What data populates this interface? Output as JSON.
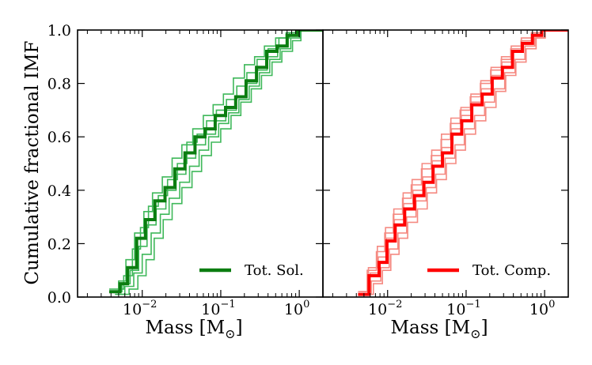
{
  "ylabel": "Cumulative fractional IMF",
  "colors": {
    "green_main": "#0b7d10",
    "green_light": "#3fb85a",
    "red_main": "#ff0000",
    "red_light": "#f58a82",
    "axis": "#000000"
  },
  "chart_data": [
    {
      "type": "line",
      "panel": "left",
      "xscale": "log",
      "xlim": [
        0.0015,
        2.0
      ],
      "ylim": [
        0.0,
        1.0
      ],
      "xlabel": "Mass [M☉]",
      "yticks": [
        "0.0",
        "0.2",
        "0.4",
        "0.6",
        "0.8",
        "1.0"
      ],
      "yticks_values": [
        0.0,
        0.2,
        0.4,
        0.6,
        0.8,
        1.0
      ],
      "xticks": [
        {
          "value": 0.01,
          "base": "10",
          "exp": "−2"
        },
        {
          "value": 0.1,
          "base": "10",
          "exp": "−1"
        },
        {
          "value": 1.0,
          "base": "10",
          "exp": "0"
        }
      ],
      "legend": {
        "label": "Tot. Sol.",
        "position": "lower-right"
      },
      "series": [
        {
          "role": "total",
          "color": "#0b7d10",
          "x": [
            0.0038,
            0.0052,
            0.0065,
            0.0085,
            0.011,
            0.0145,
            0.0195,
            0.026,
            0.035,
            0.047,
            0.063,
            0.085,
            0.115,
            0.155,
            0.21,
            0.285,
            0.385,
            0.52,
            0.7,
            0.95
          ],
          "y": [
            0.02,
            0.05,
            0.11,
            0.22,
            0.29,
            0.36,
            0.41,
            0.48,
            0.54,
            0.6,
            0.63,
            0.68,
            0.71,
            0.75,
            0.81,
            0.86,
            0.92,
            0.94,
            0.98,
            1.0
          ]
        },
        {
          "role": "sample",
          "color": "#3fb85a",
          "x": [
            0.0038,
            0.0058,
            0.0075,
            0.0095,
            0.012,
            0.016,
            0.021,
            0.028,
            0.037,
            0.05,
            0.066,
            0.088,
            0.118,
            0.16,
            0.215,
            0.29,
            0.4,
            0.55,
            0.75,
            1.0
          ],
          "y": [
            0.03,
            0.08,
            0.18,
            0.26,
            0.34,
            0.38,
            0.44,
            0.5,
            0.58,
            0.61,
            0.66,
            0.7,
            0.74,
            0.79,
            0.84,
            0.89,
            0.93,
            0.97,
            0.99,
            1.0
          ]
        },
        {
          "role": "sample",
          "color": "#3fb85a",
          "x": [
            0.004,
            0.005,
            0.0062,
            0.008,
            0.0105,
            0.0135,
            0.018,
            0.024,
            0.032,
            0.044,
            0.06,
            0.08,
            0.108,
            0.145,
            0.2,
            0.27,
            0.36,
            0.5,
            0.68,
            0.9
          ],
          "y": [
            0.02,
            0.06,
            0.14,
            0.24,
            0.32,
            0.39,
            0.45,
            0.52,
            0.57,
            0.63,
            0.68,
            0.72,
            0.76,
            0.82,
            0.87,
            0.9,
            0.94,
            0.97,
            0.99,
            1.0
          ]
        },
        {
          "role": "sample",
          "color": "#3fb85a",
          "x": [
            0.0042,
            0.0055,
            0.007,
            0.009,
            0.0115,
            0.015,
            0.02,
            0.027,
            0.036,
            0.048,
            0.064,
            0.086,
            0.116,
            0.158,
            0.213,
            0.288,
            0.39,
            0.53,
            0.72,
            0.98
          ],
          "y": [
            0.02,
            0.05,
            0.1,
            0.19,
            0.27,
            0.33,
            0.4,
            0.46,
            0.52,
            0.57,
            0.61,
            0.66,
            0.7,
            0.75,
            0.8,
            0.85,
            0.9,
            0.94,
            0.98,
            1.0
          ]
        },
        {
          "role": "sample",
          "color": "#3fb85a",
          "x": [
            0.0045,
            0.006,
            0.0078,
            0.01,
            0.013,
            0.017,
            0.022,
            0.03,
            0.04,
            0.053,
            0.07,
            0.094,
            0.126,
            0.17,
            0.23,
            0.31,
            0.42,
            0.57,
            0.78,
            1.02
          ],
          "y": [
            0.01,
            0.04,
            0.09,
            0.16,
            0.24,
            0.31,
            0.37,
            0.43,
            0.49,
            0.55,
            0.6,
            0.65,
            0.69,
            0.74,
            0.79,
            0.84,
            0.89,
            0.93,
            0.97,
            1.0
          ]
        },
        {
          "role": "sample",
          "color": "#3fb85a",
          "x": [
            0.005,
            0.0068,
            0.0088,
            0.0112,
            0.0142,
            0.0185,
            0.024,
            0.032,
            0.043,
            0.057,
            0.076,
            0.1,
            0.135,
            0.18,
            0.245,
            0.33,
            0.45,
            0.6,
            0.82,
            1.05
          ],
          "y": [
            0.01,
            0.03,
            0.08,
            0.14,
            0.22,
            0.29,
            0.35,
            0.41,
            0.47,
            0.53,
            0.58,
            0.63,
            0.68,
            0.73,
            0.78,
            0.83,
            0.88,
            0.92,
            0.96,
            1.0
          ]
        }
      ]
    },
    {
      "type": "line",
      "panel": "right",
      "xscale": "log",
      "xlim": [
        0.0015,
        2.0
      ],
      "ylim": [
        0.0,
        1.0
      ],
      "xlabel": "Mass [M☉]",
      "xticks": [
        {
          "value": 0.01,
          "base": "10",
          "exp": "−2"
        },
        {
          "value": 0.1,
          "base": "10",
          "exp": "−1"
        },
        {
          "value": 1.0,
          "base": "10",
          "exp": "0"
        }
      ],
      "legend": {
        "label": "Tot. Comp.",
        "position": "lower-right"
      },
      "series": [
        {
          "role": "total",
          "color": "#ff0000",
          "x": [
            0.0042,
            0.0058,
            0.0078,
            0.0098,
            0.0125,
            0.0165,
            0.022,
            0.029,
            0.038,
            0.05,
            0.066,
            0.088,
            0.118,
            0.16,
            0.215,
            0.29,
            0.39,
            0.52,
            0.7,
            0.92
          ],
          "y": [
            0.01,
            0.08,
            0.13,
            0.21,
            0.27,
            0.33,
            0.38,
            0.43,
            0.49,
            0.54,
            0.61,
            0.66,
            0.72,
            0.76,
            0.82,
            0.86,
            0.92,
            0.95,
            0.98,
            1.0
          ]
        },
        {
          "role": "sample",
          "color": "#f58a82",
          "x": [
            0.0042,
            0.0055,
            0.0072,
            0.0092,
            0.0118,
            0.0155,
            0.02,
            0.027,
            0.036,
            0.048,
            0.063,
            0.084,
            0.113,
            0.152,
            0.205,
            0.28,
            0.37,
            0.5,
            0.68,
            0.9
          ],
          "y": [
            0.02,
            0.1,
            0.17,
            0.24,
            0.31,
            0.37,
            0.42,
            0.48,
            0.53,
            0.59,
            0.65,
            0.7,
            0.75,
            0.8,
            0.85,
            0.89,
            0.93,
            0.96,
            0.99,
            1.0
          ]
        },
        {
          "role": "sample",
          "color": "#f58a82",
          "x": [
            0.0048,
            0.0062,
            0.0082,
            0.0105,
            0.0135,
            0.0175,
            0.023,
            0.031,
            0.041,
            0.054,
            0.072,
            0.095,
            0.128,
            0.172,
            0.23,
            0.31,
            0.42,
            0.56,
            0.75,
            1.0
          ],
          "y": [
            0.01,
            0.06,
            0.11,
            0.18,
            0.24,
            0.3,
            0.36,
            0.41,
            0.46,
            0.52,
            0.57,
            0.63,
            0.68,
            0.73,
            0.78,
            0.84,
            0.89,
            0.94,
            0.97,
            1.0
          ]
        },
        {
          "role": "sample",
          "color": "#f58a82",
          "x": [
            0.0045,
            0.006,
            0.0076,
            0.0096,
            0.0122,
            0.016,
            0.021,
            0.028,
            0.037,
            0.049,
            0.065,
            0.087,
            0.116,
            0.156,
            0.21,
            0.285,
            0.38,
            0.51,
            0.69,
            0.94
          ],
          "y": [
            0.02,
            0.09,
            0.15,
            0.22,
            0.29,
            0.35,
            0.4,
            0.45,
            0.51,
            0.56,
            0.63,
            0.68,
            0.73,
            0.78,
            0.83,
            0.88,
            0.92,
            0.95,
            0.98,
            1.0
          ]
        },
        {
          "role": "sample",
          "color": "#f58a82",
          "x": [
            0.005,
            0.0066,
            0.0086,
            0.011,
            0.014,
            0.018,
            0.024,
            0.032,
            0.042,
            0.056,
            0.074,
            0.098,
            0.132,
            0.178,
            0.24,
            0.32,
            0.43,
            0.58,
            0.78,
            1.02
          ],
          "y": [
            0.01,
            0.05,
            0.1,
            0.16,
            0.22,
            0.28,
            0.33,
            0.39,
            0.44,
            0.5,
            0.55,
            0.61,
            0.66,
            0.71,
            0.77,
            0.83,
            0.88,
            0.93,
            0.97,
            1.0
          ]
        },
        {
          "role": "sample",
          "color": "#f58a82",
          "x": [
            0.0044,
            0.0057,
            0.0074,
            0.0094,
            0.012,
            0.0158,
            0.0205,
            0.0275,
            0.0365,
            0.0485,
            0.064,
            0.086,
            0.115,
            0.154,
            0.208,
            0.282,
            0.375,
            0.505,
            0.685,
            0.91
          ],
          "y": [
            0.02,
            0.11,
            0.19,
            0.26,
            0.33,
            0.39,
            0.44,
            0.5,
            0.55,
            0.61,
            0.67,
            0.71,
            0.76,
            0.81,
            0.86,
            0.9,
            0.94,
            0.97,
            0.99,
            1.0
          ]
        }
      ]
    }
  ]
}
